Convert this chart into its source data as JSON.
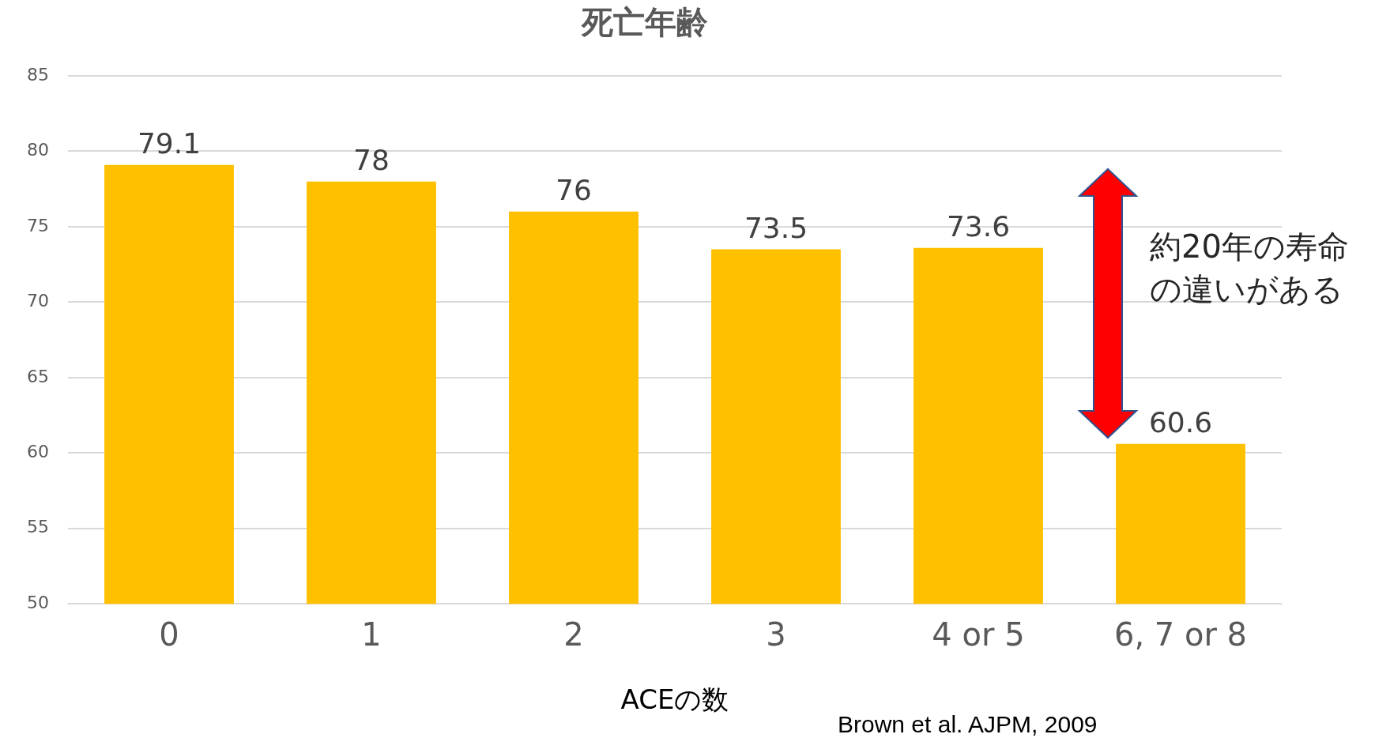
{
  "chart_data": {
    "type": "bar",
    "title": "死亡年齢",
    "xlabel": "ACEの数",
    "categories": [
      "0",
      "1",
      "2",
      "3",
      "4 or 5",
      "6, 7 or 8"
    ],
    "values": [
      79.1,
      78,
      76,
      73.5,
      73.6,
      60.6
    ],
    "color": "#ffc000",
    "ylim": [
      50,
      85
    ],
    "yticks": [
      50,
      55,
      60,
      65,
      70,
      75,
      80,
      85
    ],
    "grid": "y",
    "data_labels": true,
    "annotations": [
      "約20年の寿命の違いがある",
      "Brown et al. AJPM, 2009"
    ]
  }
}
